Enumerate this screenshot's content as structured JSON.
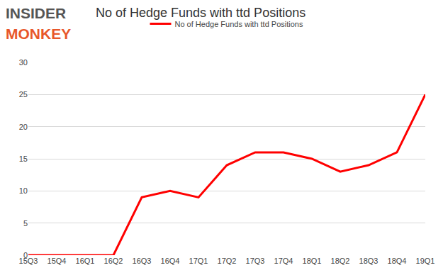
{
  "chart_data": {
    "type": "line",
    "title": "No of Hedge Funds with ttd Positions",
    "annotations": [
      "INSIDER",
      "MONKEY"
    ],
    "categories": [
      "15Q3",
      "15Q4",
      "16Q1",
      "16Q2",
      "16Q3",
      "16Q4",
      "17Q1",
      "17Q2",
      "17Q3",
      "17Q4",
      "18Q1",
      "18Q2",
      "18Q3",
      "18Q4",
      "19Q1"
    ],
    "series": [
      {
        "name": "No of Hedge Funds with ttd Positions",
        "color": "#ff0000",
        "values": [
          0,
          0,
          0,
          0,
          9,
          10,
          9,
          14,
          16,
          16,
          15,
          13,
          14,
          16,
          25
        ]
      }
    ],
    "ylim": [
      0,
      30
    ],
    "yticks": [
      0,
      5,
      10,
      15,
      20,
      25,
      30
    ],
    "grid": true,
    "legend": "top"
  }
}
